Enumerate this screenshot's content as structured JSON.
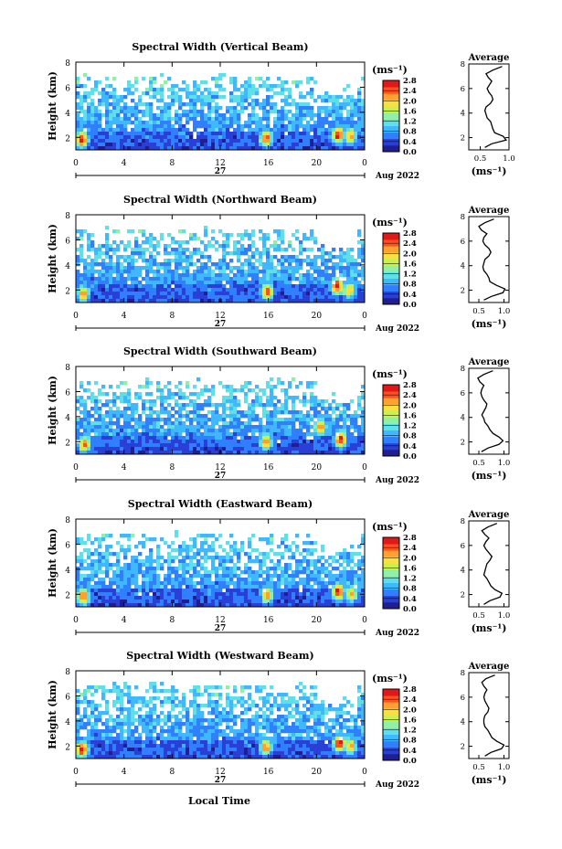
{
  "figure": {
    "local_time_label": "Local Time",
    "date_label": "27",
    "month_label": "Aug 2022",
    "height_axis_label": "Height (km)",
    "unit_label": "(ms⁻¹)",
    "average_title": "Average",
    "colormap": [
      "#1f1f8f",
      "#2a3fd6",
      "#2f7fff",
      "#3fb8ff",
      "#5fe0e8",
      "#8ff0a8",
      "#c8f050",
      "#f8e040",
      "#ffa030",
      "#ff5020",
      "#e01818"
    ]
  },
  "chart_data": [
    {
      "type": "heatmap",
      "title": "Spectral Width (Vertical Beam)",
      "xlabel": "",
      "ylabel": "Height (km)",
      "xlim": [
        0,
        24
      ],
      "ylim": [
        1,
        8
      ],
      "x_ticks": [
        "0",
        "4",
        "8",
        "12",
        "16",
        "20",
        "0"
      ],
      "y_ticks": [
        "2",
        "4",
        "6",
        "8"
      ],
      "colorbar": {
        "label": "(ms⁻¹)",
        "range": [
          0,
          2.8
        ],
        "ticks": [
          "0.0",
          "0.4",
          "0.8",
          "1.2",
          "1.6",
          "2.0",
          "2.4",
          "2.8"
        ]
      },
      "hotspots": [
        {
          "time": 0.5,
          "height": 1.8,
          "value": 2.6
        },
        {
          "time": 15.8,
          "height": 1.9,
          "value": 2.4
        },
        {
          "time": 21.8,
          "height": 2.2,
          "value": 2.6
        },
        {
          "time": 22.8,
          "height": 2.1,
          "value": 2.2
        }
      ],
      "average_profile": {
        "title": "Average",
        "xlabel": "(ms⁻¹)",
        "xlim": [
          0.3,
          1.0
        ],
        "ylim": [
          1,
          8
        ],
        "x_ticks": [
          "0.5",
          "1.0"
        ],
        "y_ticks": [
          "2",
          "4",
          "6",
          "8"
        ],
        "height": [
          1.2,
          1.5,
          1.8,
          2.1,
          2.4,
          2.7,
          3.0,
          3.3,
          3.6,
          3.9,
          4.2,
          4.5,
          4.8,
          5.1,
          5.4,
          5.7,
          6.0,
          6.3,
          6.6,
          6.9,
          7.2,
          7.5,
          7.8
        ],
        "value": [
          0.58,
          0.7,
          0.95,
          0.9,
          0.75,
          0.72,
          0.7,
          0.68,
          0.62,
          0.6,
          0.58,
          0.6,
          0.68,
          0.72,
          0.7,
          0.65,
          0.62,
          0.66,
          0.7,
          0.64,
          0.6,
          0.72,
          0.88
        ]
      }
    },
    {
      "type": "heatmap",
      "title": "Spectral Width (Northward Beam)",
      "xlabel": "",
      "ylabel": "Height (km)",
      "xlim": [
        0,
        24
      ],
      "ylim": [
        1,
        8
      ],
      "x_ticks": [
        "0",
        "4",
        "8",
        "12",
        "16",
        "20",
        "0"
      ],
      "y_ticks": [
        "2",
        "4",
        "6",
        "8"
      ],
      "colorbar": {
        "label": "(ms⁻¹)",
        "range": [
          0,
          2.8
        ],
        "ticks": [
          "0.0",
          "0.4",
          "0.8",
          "1.2",
          "1.6",
          "2.0",
          "2.4",
          "2.8"
        ]
      },
      "hotspots": [
        {
          "time": 0.6,
          "height": 1.7,
          "value": 2.2
        },
        {
          "time": 15.9,
          "height": 1.9,
          "value": 2.4
        },
        {
          "time": 21.7,
          "height": 2.3,
          "value": 2.6
        },
        {
          "time": 22.7,
          "height": 2.0,
          "value": 2.0
        }
      ],
      "average_profile": {
        "title": "Average",
        "xlabel": "(ms⁻¹)",
        "xlim": [
          0.3,
          1.1
        ],
        "ylim": [
          1,
          8
        ],
        "x_ticks": [
          "0.5",
          "1.0"
        ],
        "y_ticks": [
          "2",
          "4",
          "6",
          "8"
        ],
        "height": [
          1.2,
          1.5,
          1.8,
          2.1,
          2.4,
          2.7,
          3.0,
          3.3,
          3.6,
          3.9,
          4.2,
          4.5,
          4.8,
          5.1,
          5.4,
          5.7,
          6.0,
          6.3,
          6.6,
          6.9,
          7.2,
          7.5,
          7.8
        ],
        "value": [
          0.6,
          0.75,
          0.98,
          1.02,
          0.85,
          0.72,
          0.7,
          0.66,
          0.6,
          0.58,
          0.6,
          0.62,
          0.7,
          0.74,
          0.7,
          0.62,
          0.58,
          0.6,
          0.66,
          0.55,
          0.5,
          0.62,
          0.8
        ]
      }
    },
    {
      "type": "heatmap",
      "title": "Spectral Width (Southward Beam)",
      "xlabel": "",
      "ylabel": "Height (km)",
      "xlim": [
        0,
        24
      ],
      "ylim": [
        1,
        8
      ],
      "x_ticks": [
        "0",
        "4",
        "8",
        "12",
        "16",
        "20",
        "0"
      ],
      "y_ticks": [
        "2",
        "4",
        "6",
        "8"
      ],
      "colorbar": {
        "label": "(ms⁻¹)",
        "range": [
          0,
          2.8
        ],
        "ticks": [
          "0.0",
          "0.4",
          "0.8",
          "1.2",
          "1.6",
          "2.0",
          "2.4",
          "2.8"
        ]
      },
      "hotspots": [
        {
          "time": 0.7,
          "height": 1.8,
          "value": 2.2
        },
        {
          "time": 15.8,
          "height": 2.0,
          "value": 2.2
        },
        {
          "time": 20.3,
          "height": 3.2,
          "value": 2.2
        },
        {
          "time": 22.0,
          "height": 2.2,
          "value": 2.6
        }
      ],
      "average_profile": {
        "title": "Average",
        "xlabel": "(ms⁻¹)",
        "xlim": [
          0.3,
          1.1
        ],
        "ylim": [
          1,
          8
        ],
        "x_ticks": [
          "0.5",
          "1.0"
        ],
        "y_ticks": [
          "2",
          "4",
          "6",
          "8"
        ],
        "height": [
          1.2,
          1.5,
          1.8,
          2.1,
          2.4,
          2.7,
          3.0,
          3.3,
          3.6,
          3.9,
          4.2,
          4.5,
          4.8,
          5.1,
          5.4,
          5.7,
          6.0,
          6.3,
          6.6,
          6.9,
          7.2,
          7.5,
          7.8
        ],
        "value": [
          0.55,
          0.68,
          0.9,
          0.98,
          0.9,
          0.78,
          0.72,
          0.68,
          0.62,
          0.6,
          0.56,
          0.6,
          0.64,
          0.66,
          0.6,
          0.56,
          0.54,
          0.56,
          0.6,
          0.52,
          0.48,
          0.6,
          0.78
        ]
      }
    },
    {
      "type": "heatmap",
      "title": "Spectral Width (Eastward Beam)",
      "xlabel": "",
      "ylabel": "Height (km)",
      "xlim": [
        0,
        24
      ],
      "ylim": [
        1,
        8
      ],
      "x_ticks": [
        "0",
        "4",
        "8",
        "12",
        "16",
        "20",
        "0"
      ],
      "y_ticks": [
        "2",
        "4",
        "6",
        "8"
      ],
      "colorbar": {
        "label": "(ms⁻¹)",
        "range": [
          0,
          2.8
        ],
        "ticks": [
          "0.0",
          "0.4",
          "0.8",
          "1.2",
          "1.6",
          "2.0",
          "2.4",
          "2.8"
        ]
      },
      "hotspots": [
        {
          "time": 0.6,
          "height": 1.8,
          "value": 2.4
        },
        {
          "time": 15.9,
          "height": 1.9,
          "value": 2.2
        },
        {
          "time": 21.8,
          "height": 2.2,
          "value": 2.6
        },
        {
          "time": 22.9,
          "height": 2.0,
          "value": 2.0
        }
      ],
      "average_profile": {
        "title": "Average",
        "xlabel": "(ms⁻¹)",
        "xlim": [
          0.3,
          1.1
        ],
        "ylim": [
          1,
          8
        ],
        "x_ticks": [
          "0.5",
          "1.0"
        ],
        "y_ticks": [
          "2",
          "4",
          "6",
          "8"
        ],
        "height": [
          1.2,
          1.5,
          1.8,
          2.1,
          2.4,
          2.7,
          3.0,
          3.3,
          3.6,
          3.9,
          4.2,
          4.5,
          4.8,
          5.1,
          5.4,
          5.7,
          6.0,
          6.3,
          6.6,
          6.9,
          7.2,
          7.5,
          7.8
        ],
        "value": [
          0.6,
          0.72,
          0.92,
          0.96,
          0.82,
          0.74,
          0.7,
          0.66,
          0.6,
          0.62,
          0.64,
          0.66,
          0.72,
          0.76,
          0.7,
          0.64,
          0.6,
          0.64,
          0.7,
          0.62,
          0.56,
          0.68,
          0.86
        ]
      }
    },
    {
      "type": "heatmap",
      "title": "Spectral Width (Westward Beam)",
      "xlabel": "Local Time",
      "ylabel": "Height (km)",
      "xlim": [
        0,
        24
      ],
      "ylim": [
        1,
        8
      ],
      "x_ticks": [
        "0",
        "4",
        "8",
        "12",
        "16",
        "20",
        "0"
      ],
      "y_ticks": [
        "2",
        "4",
        "6",
        "8"
      ],
      "colorbar": {
        "label": "(ms⁻¹)",
        "range": [
          0,
          2.8
        ],
        "ticks": [
          "0.0",
          "0.4",
          "0.8",
          "1.2",
          "1.6",
          "2.0",
          "2.4",
          "2.8"
        ]
      },
      "hotspots": [
        {
          "time": 0.5,
          "height": 1.7,
          "value": 2.6
        },
        {
          "time": 15.8,
          "height": 1.9,
          "value": 2.2
        },
        {
          "time": 21.9,
          "height": 2.2,
          "value": 2.6
        },
        {
          "time": 22.8,
          "height": 2.0,
          "value": 2.0
        }
      ],
      "average_profile": {
        "title": "Average",
        "xlabel": "(ms⁻¹)",
        "xlim": [
          0.3,
          1.1
        ],
        "ylim": [
          1,
          8
        ],
        "x_ticks": [
          "0.5",
          "1.0"
        ],
        "y_ticks": [
          "2",
          "4",
          "6",
          "8"
        ],
        "height": [
          1.2,
          1.5,
          1.8,
          2.1,
          2.4,
          2.7,
          3.0,
          3.3,
          3.6,
          3.9,
          4.2,
          4.5,
          4.8,
          5.1,
          5.4,
          5.7,
          6.0,
          6.3,
          6.6,
          6.9,
          7.2,
          7.5,
          7.8
        ],
        "value": [
          0.62,
          0.74,
          0.95,
          1.0,
          0.86,
          0.76,
          0.72,
          0.68,
          0.62,
          0.6,
          0.6,
          0.62,
          0.68,
          0.7,
          0.66,
          0.62,
          0.6,
          0.62,
          0.66,
          0.6,
          0.56,
          0.64,
          0.82
        ]
      }
    }
  ]
}
